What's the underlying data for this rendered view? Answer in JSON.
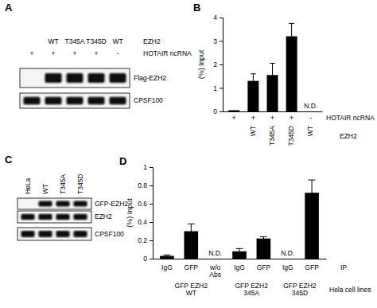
{
  "chart_data": [
    {
      "type": "bar",
      "panel": "B",
      "y_label": "(%) Input",
      "categories": [
        null,
        "WT",
        "T345A",
        "T345D",
        "WT"
      ],
      "x_label": "EZH2",
      "x_rows": [
        {
          "label": "HOTAIR ncRNA",
          "labels": [
            "+",
            "+",
            "+",
            "+",
            "-"
          ]
        }
      ],
      "values": [
        0.05,
        1.3,
        1.55,
        3.2,
        null
      ],
      "errors": [
        null,
        0.3,
        0.5,
        0.55,
        null
      ],
      "color": "#000000",
      "ylim": [
        0,
        4
      ],
      "yticks": [
        0,
        1,
        2,
        3,
        4
      ],
      "annotations": [
        {
          "text": "N.D.",
          "category": 4
        }
      ]
    },
    {
      "type": "bar",
      "panel": "D",
      "y_label": "(%) Input",
      "categories": [
        "IgG",
        "GFP",
        "w/o Abs",
        "IgG",
        "GFP",
        "IgG",
        "GFP"
      ],
      "x_label": "IP",
      "values": [
        0.03,
        0.3,
        null,
        0.08,
        0.22,
        null,
        0.72
      ],
      "errors": [
        0.01,
        0.08,
        null,
        0.03,
        0.02,
        null,
        0.14
      ],
      "color": "#000000",
      "ylim": [
        0,
        1
      ],
      "yticks": [
        0,
        0.2,
        0.4,
        0.6,
        0.8,
        1
      ],
      "groups": [
        {
          "lines": [
            "GFP EZH2",
            "WT"
          ],
          "first": 0,
          "last": 2
        },
        {
          "lines": [
            "GFP EZH2",
            "345A"
          ],
          "first": 3,
          "last": 4
        },
        {
          "lines": [
            "GFP EZH2",
            "345D"
          ],
          "first": 5,
          "last": 6
        }
      ],
      "group_label": "Hela cell lines",
      "annotations": [
        {
          "text": "N.D.",
          "category": 2
        },
        {
          "text": "N.D.",
          "category": 5
        }
      ]
    }
  ],
  "blots": [
    {
      "panel": "A",
      "header_rows": [
        {
          "label": "EZH2",
          "cells": [
            null,
            "WT",
            "T345A",
            "T345D",
            "WT"
          ]
        },
        {
          "label": "HOTAIR ncRNA",
          "cells": [
            "+",
            "+",
            "+",
            "+",
            "-"
          ]
        }
      ],
      "rows": [
        {
          "label": "Flag-EZH2",
          "bands": [
            false,
            true,
            true,
            true,
            true
          ]
        },
        {
          "label": "CPSF100",
          "bands": [
            true,
            true,
            true,
            true,
            true
          ]
        }
      ]
    },
    {
      "panel": "C",
      "header_rows": [
        {
          "cells": [
            "HeLa",
            "WT",
            "T345A",
            "T345D"
          ]
        }
      ],
      "rows": [
        {
          "label": "GFP-EZH2",
          "bands": [
            false,
            true,
            true,
            true
          ]
        },
        {
          "label": "EZH2",
          "bands": [
            true,
            true,
            true,
            true
          ]
        },
        {
          "label": "CPSF100",
          "bands": [
            true,
            true,
            true,
            true
          ]
        }
      ]
    }
  ]
}
